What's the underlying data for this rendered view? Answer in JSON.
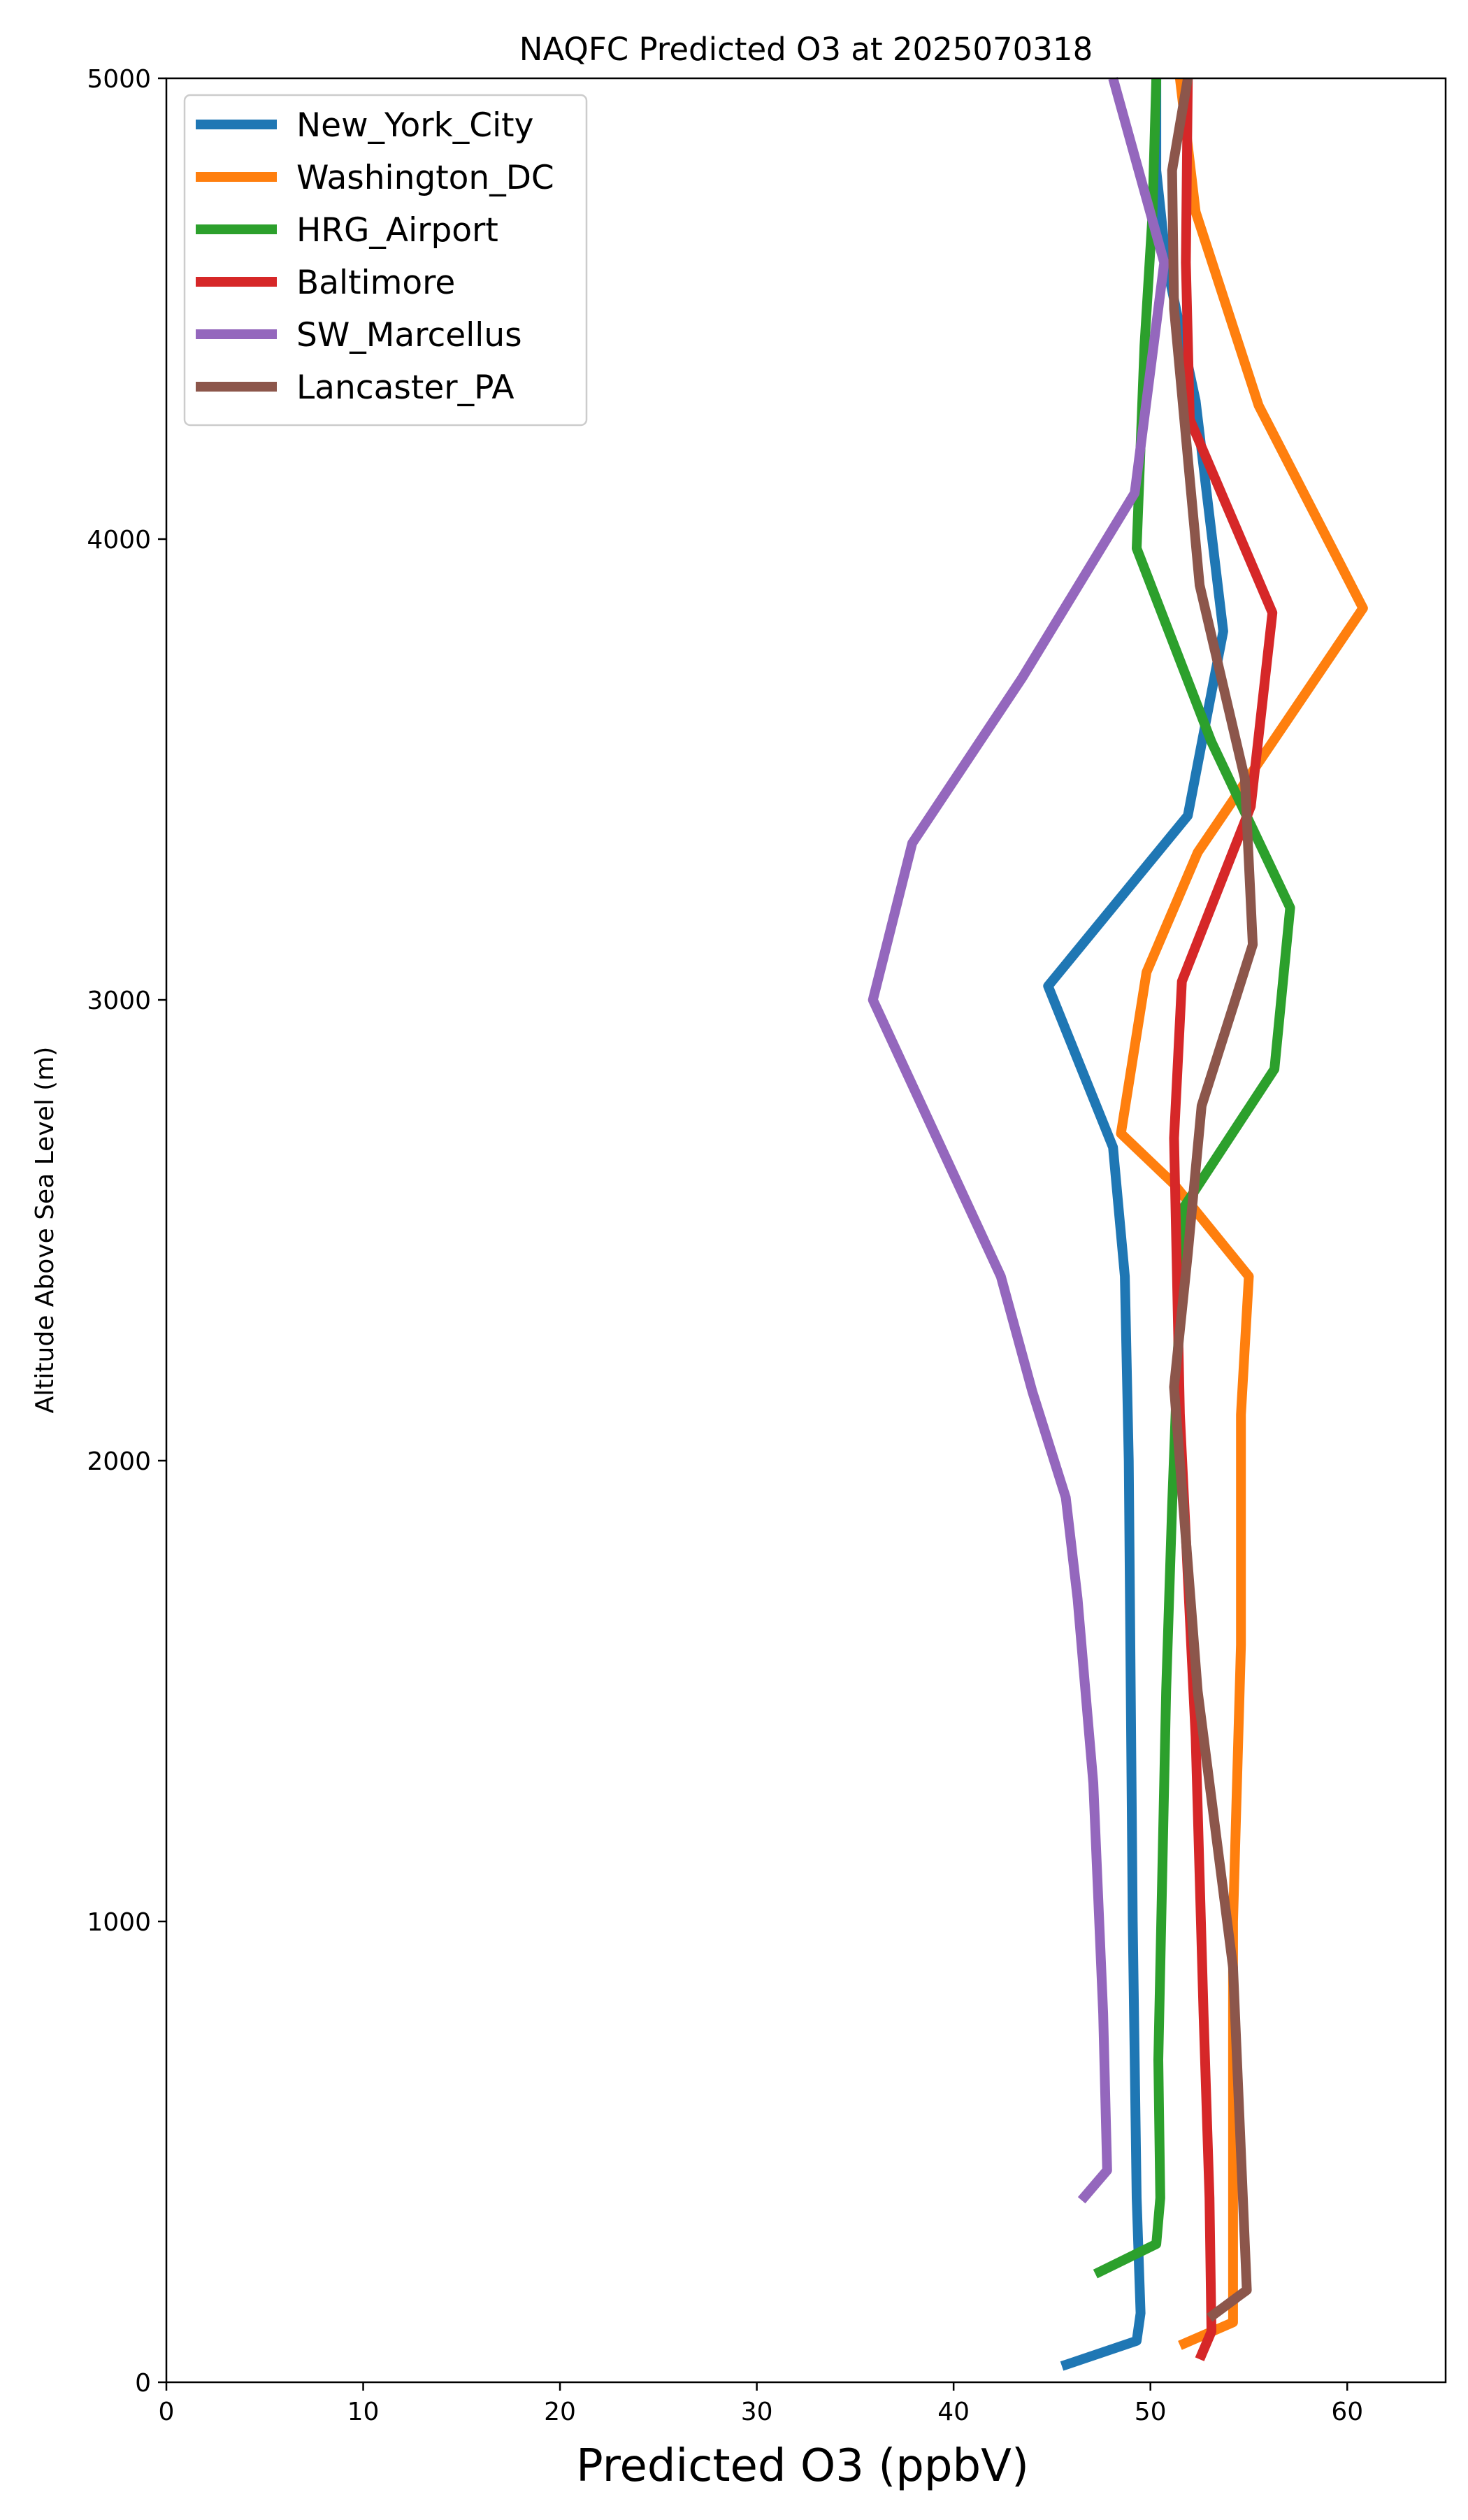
{
  "chart_data": {
    "type": "line",
    "title": "NAQFC Predicted O3 at 2025070318",
    "xlabel": "Predicted O3 (ppbV)",
    "ylabel": "Altitude Above Sea Level (m)",
    "xlim": [
      0,
      65
    ],
    "ylim": [
      0,
      5000
    ],
    "xticks": [
      0,
      10,
      20,
      30,
      40,
      50,
      60
    ],
    "yticks": [
      0,
      1000,
      2000,
      3000,
      4000,
      5000
    ],
    "grid": false,
    "legend_position": "upper-left",
    "series": [
      {
        "name": "New_York_City",
        "color": "#1f77b4",
        "points": [
          [
            45.5,
            35
          ],
          [
            49.3,
            90
          ],
          [
            49.5,
            150
          ],
          [
            49.3,
            400
          ],
          [
            49.1,
            1000
          ],
          [
            48.9,
            2000
          ],
          [
            48.7,
            2400
          ],
          [
            48.1,
            2680
          ],
          [
            44.8,
            3030
          ],
          [
            51.9,
            3400
          ],
          [
            53.7,
            3800
          ],
          [
            52.3,
            4300
          ],
          [
            50.8,
            4600
          ],
          [
            50.3,
            4800
          ],
          [
            50.3,
            5000
          ]
        ]
      },
      {
        "name": "Washington_DC",
        "color": "#ff7f0e",
        "points": [
          [
            51.5,
            80
          ],
          [
            54.2,
            130
          ],
          [
            54.2,
            400
          ],
          [
            54.2,
            1000
          ],
          [
            54.6,
            1600
          ],
          [
            54.6,
            2100
          ],
          [
            55.0,
            2400
          ],
          [
            51.2,
            2600
          ],
          [
            48.5,
            2710
          ],
          [
            49.8,
            3060
          ],
          [
            52.4,
            3320
          ],
          [
            55.1,
            3490
          ],
          [
            60.8,
            3850
          ],
          [
            55.5,
            4290
          ],
          [
            52.3,
            4710
          ],
          [
            51.5,
            5000
          ]
        ]
      },
      {
        "name": "HRG_Airport",
        "color": "#2ca02c",
        "points": [
          [
            47.2,
            235
          ],
          [
            50.3,
            300
          ],
          [
            50.5,
            400
          ],
          [
            50.4,
            700
          ],
          [
            50.8,
            1500
          ],
          [
            51.1,
            1900
          ],
          [
            51.5,
            2350
          ],
          [
            51.7,
            2550
          ],
          [
            56.3,
            2850
          ],
          [
            57.1,
            3200
          ],
          [
            53.1,
            3560
          ],
          [
            49.3,
            3980
          ],
          [
            49.7,
            4420
          ],
          [
            50.1,
            4700
          ],
          [
            50.3,
            5000
          ]
        ]
      },
      {
        "name": "Baltimore",
        "color": "#d62728",
        "points": [
          [
            52.5,
            50
          ],
          [
            53.1,
            110
          ],
          [
            53.0,
            400
          ],
          [
            52.7,
            800
          ],
          [
            52.3,
            1400
          ],
          [
            51.5,
            2100
          ],
          [
            51.2,
            2700
          ],
          [
            51.6,
            3040
          ],
          [
            55.1,
            3420
          ],
          [
            56.2,
            3840
          ],
          [
            52.0,
            4260
          ],
          [
            51.8,
            4600
          ],
          [
            51.9,
            5000
          ]
        ]
      },
      {
        "name": "SW_Marcellus",
        "color": "#9467bd",
        "points": [
          [
            46.5,
            395
          ],
          [
            47.8,
            460
          ],
          [
            47.6,
            800
          ],
          [
            47.1,
            1300
          ],
          [
            46.3,
            1700
          ],
          [
            45.7,
            1920
          ],
          [
            44.0,
            2150
          ],
          [
            42.4,
            2400
          ],
          [
            35.9,
            3000
          ],
          [
            37.9,
            3340
          ],
          [
            43.5,
            3700
          ],
          [
            49.2,
            4100
          ],
          [
            50.7,
            4600
          ],
          [
            48.1,
            5000
          ]
        ]
      },
      {
        "name": "Lancaster_PA",
        "color": "#8c564b",
        "points": [
          [
            53.0,
            140
          ],
          [
            54.9,
            200
          ],
          [
            54.2,
            900
          ],
          [
            52.4,
            1500
          ],
          [
            51.2,
            2160
          ],
          [
            51.9,
            2450
          ],
          [
            52.6,
            2770
          ],
          [
            55.2,
            3120
          ],
          [
            54.8,
            3480
          ],
          [
            52.5,
            3900
          ],
          [
            51.2,
            4500
          ],
          [
            51.1,
            4800
          ],
          [
            51.9,
            5000
          ]
        ]
      }
    ]
  }
}
